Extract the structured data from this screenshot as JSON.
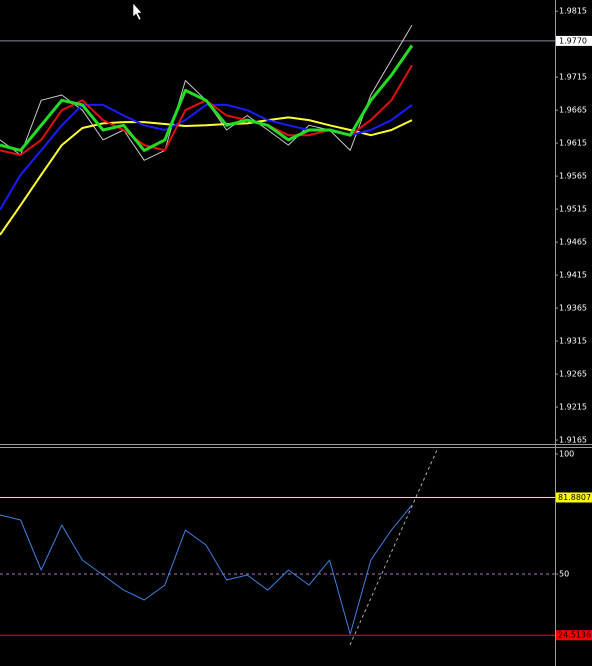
{
  "chart_data": [
    {
      "type": "line",
      "ylim": [
        1.9159,
        1.9832
      ],
      "yticks": [
        1.9815,
        1.9715,
        1.9665,
        1.9615,
        1.9565,
        1.9515,
        1.9465,
        1.9415,
        1.9365,
        1.9315,
        1.9265,
        1.9215,
        1.9165
      ],
      "current_price": {
        "value": 1.977,
        "label": "1.9770",
        "color": "#8a8a9a"
      },
      "series": [
        {
          "color": "#c8c8c8",
          "width": 1,
          "values": [
            1.962,
            1.9597,
            1.968,
            1.9688,
            1.9665,
            1.962,
            1.9635,
            1.9589,
            1.9604,
            1.971,
            1.968,
            1.9635,
            1.9657,
            1.9635,
            1.9612,
            1.9642,
            1.9635,
            1.9604,
            1.9688,
            1.9741,
            1.9794
          ]
        },
        {
          "color": "#ffff33",
          "width": 2,
          "values": [
            1.9476,
            1.9521,
            1.9567,
            1.9612,
            1.9638,
            1.9645,
            1.9647,
            1.9647,
            1.9644,
            1.9641,
            1.9642,
            1.9644,
            1.9645,
            1.965,
            1.9654,
            1.965,
            1.9642,
            1.9635,
            1.9627,
            1.9635,
            1.965
          ]
        },
        {
          "color": "#1a1aff",
          "width": 2,
          "values": [
            1.9514,
            1.9567,
            1.9604,
            1.9642,
            1.9673,
            1.9673,
            1.9657,
            1.9642,
            1.9635,
            1.965,
            1.9673,
            1.9673,
            1.9665,
            1.965,
            1.9642,
            1.9635,
            1.9635,
            1.9627,
            1.9635,
            1.965,
            1.9673
          ]
        },
        {
          "color": "#e01010",
          "width": 2,
          "values": [
            1.9604,
            1.9597,
            1.962,
            1.9665,
            1.968,
            1.965,
            1.9635,
            1.9612,
            1.9604,
            1.9665,
            1.968,
            1.9657,
            1.965,
            1.9642,
            1.9627,
            1.9627,
            1.9635,
            1.9627,
            1.965,
            1.968,
            1.9733
          ]
        },
        {
          "color": "#22dd22",
          "width": 3,
          "values": [
            1.9612,
            1.9604,
            1.9642,
            1.968,
            1.9673,
            1.9635,
            1.9642,
            1.9604,
            1.962,
            1.9695,
            1.968,
            1.9642,
            1.965,
            1.9642,
            1.962,
            1.9635,
            1.9635,
            1.9627,
            1.968,
            1.9718,
            1.9763
          ]
        }
      ]
    },
    {
      "type": "line",
      "ylim": [
        11.7,
        102.5
      ],
      "yticks": [
        100,
        50
      ],
      "midline": {
        "value": 50,
        "color": "#b070c0"
      },
      "levels": [
        {
          "value": 81.8807,
          "color": "#ffff00"
        },
        {
          "value": 24.5136,
          "color": "#ff0000"
        }
      ],
      "series": [
        {
          "color": "#3b80e0",
          "width": 1,
          "values": [
            74.6,
            72.5,
            51.7,
            70.4,
            55.8,
            49.6,
            43.3,
            39.2,
            45.4,
            68.3,
            62.1,
            47.5,
            49.6,
            43.3,
            51.7,
            45.4,
            55.8,
            25,
            55.8,
            68.3,
            78.75
          ]
        }
      ]
    }
  ]
}
